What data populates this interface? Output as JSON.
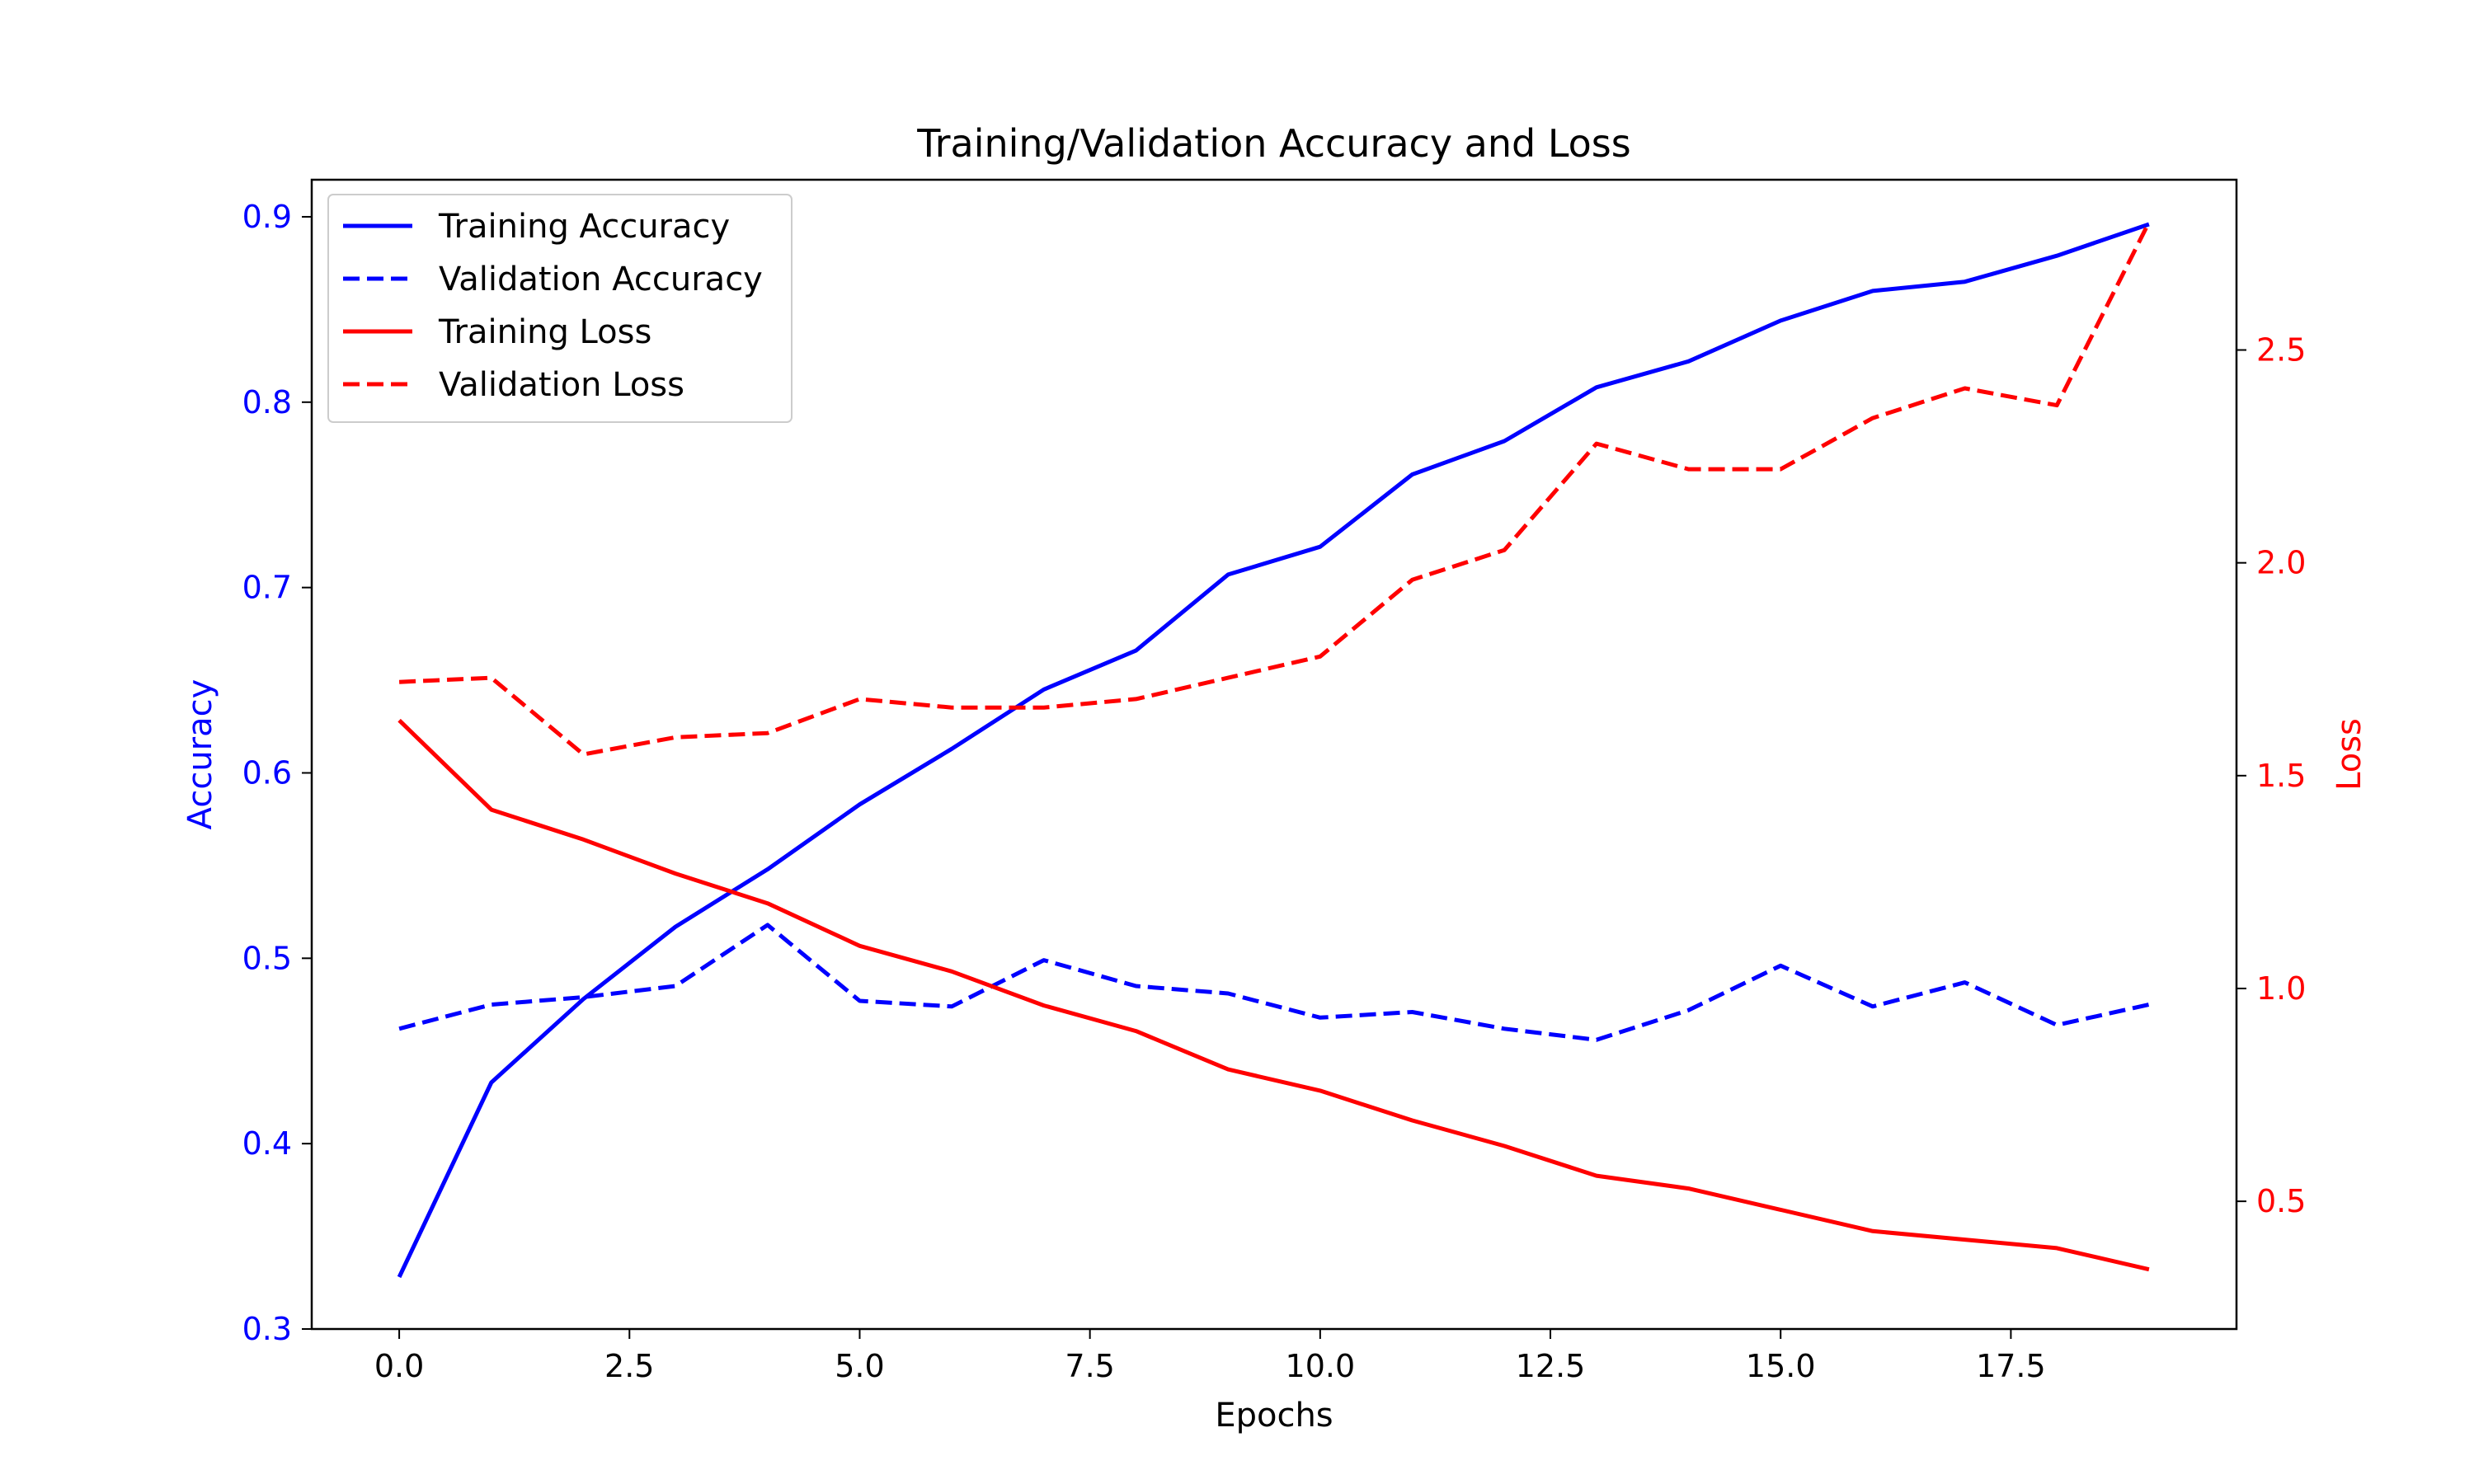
{
  "chart_data": {
    "type": "line",
    "title": "Training/Validation Accuracy and Loss",
    "xlabel": "Epochs",
    "ylabel_left": "Accuracy",
    "ylabel_right": "Loss",
    "xlim": [
      -0.95,
      19.95
    ],
    "ylim_left": [
      0.3,
      0.92
    ],
    "ylim_right": [
      0.2,
      2.9
    ],
    "xticks": [
      0.0,
      2.5,
      5.0,
      7.5,
      10.0,
      12.5,
      15.0,
      17.5
    ],
    "xtick_labels": [
      "0.0",
      "2.5",
      "5.0",
      "7.5",
      "10.0",
      "12.5",
      "15.0",
      "17.5"
    ],
    "yticks_left": [
      0.3,
      0.4,
      0.5,
      0.6,
      0.7,
      0.8,
      0.9
    ],
    "yticks_left_labels": [
      "0.3",
      "0.4",
      "0.5",
      "0.6",
      "0.7",
      "0.8",
      "0.9"
    ],
    "yticks_right": [
      0.5,
      1.0,
      1.5,
      2.0,
      2.5
    ],
    "yticks_right_labels": [
      "0.5",
      "1.0",
      "1.5",
      "2.0",
      "2.5"
    ],
    "grid": false,
    "legend_position": "top-left",
    "x": [
      0,
      1,
      2,
      3,
      4,
      5,
      6,
      7,
      8,
      9,
      10,
      11,
      12,
      13,
      14,
      15,
      16,
      17,
      18,
      19
    ],
    "series": [
      {
        "name": "Training Accuracy",
        "axis": "left",
        "color": "#0000ff",
        "dash": false,
        "values": [
          0.328,
          0.433,
          0.478,
          0.517,
          0.548,
          0.583,
          0.613,
          0.645,
          0.666,
          0.707,
          0.722,
          0.761,
          0.779,
          0.808,
          0.822,
          0.844,
          0.86,
          0.865,
          0.879,
          0.896
        ]
      },
      {
        "name": "Validation Accuracy",
        "axis": "left",
        "color": "#0000ff",
        "dash": true,
        "values": [
          0.462,
          0.475,
          0.479,
          0.485,
          0.518,
          0.477,
          0.474,
          0.499,
          0.485,
          0.481,
          0.468,
          0.471,
          0.462,
          0.456,
          0.472,
          0.496,
          0.474,
          0.487,
          0.464,
          0.475
        ]
      },
      {
        "name": "Training Loss",
        "axis": "right",
        "color": "#ff0000",
        "dash": false,
        "values": [
          1.63,
          1.42,
          1.35,
          1.27,
          1.2,
          1.1,
          1.04,
          0.96,
          0.9,
          0.81,
          0.76,
          0.69,
          0.63,
          0.56,
          0.53,
          0.48,
          0.43,
          0.41,
          0.39,
          0.34
        ]
      },
      {
        "name": "Validation Loss",
        "axis": "right",
        "color": "#ff0000",
        "dash": true,
        "values": [
          1.72,
          1.73,
          1.55,
          1.59,
          1.6,
          1.68,
          1.66,
          1.66,
          1.68,
          1.73,
          1.78,
          1.96,
          2.03,
          2.28,
          2.22,
          2.22,
          2.34,
          2.41,
          2.37,
          2.8
        ]
      }
    ]
  }
}
